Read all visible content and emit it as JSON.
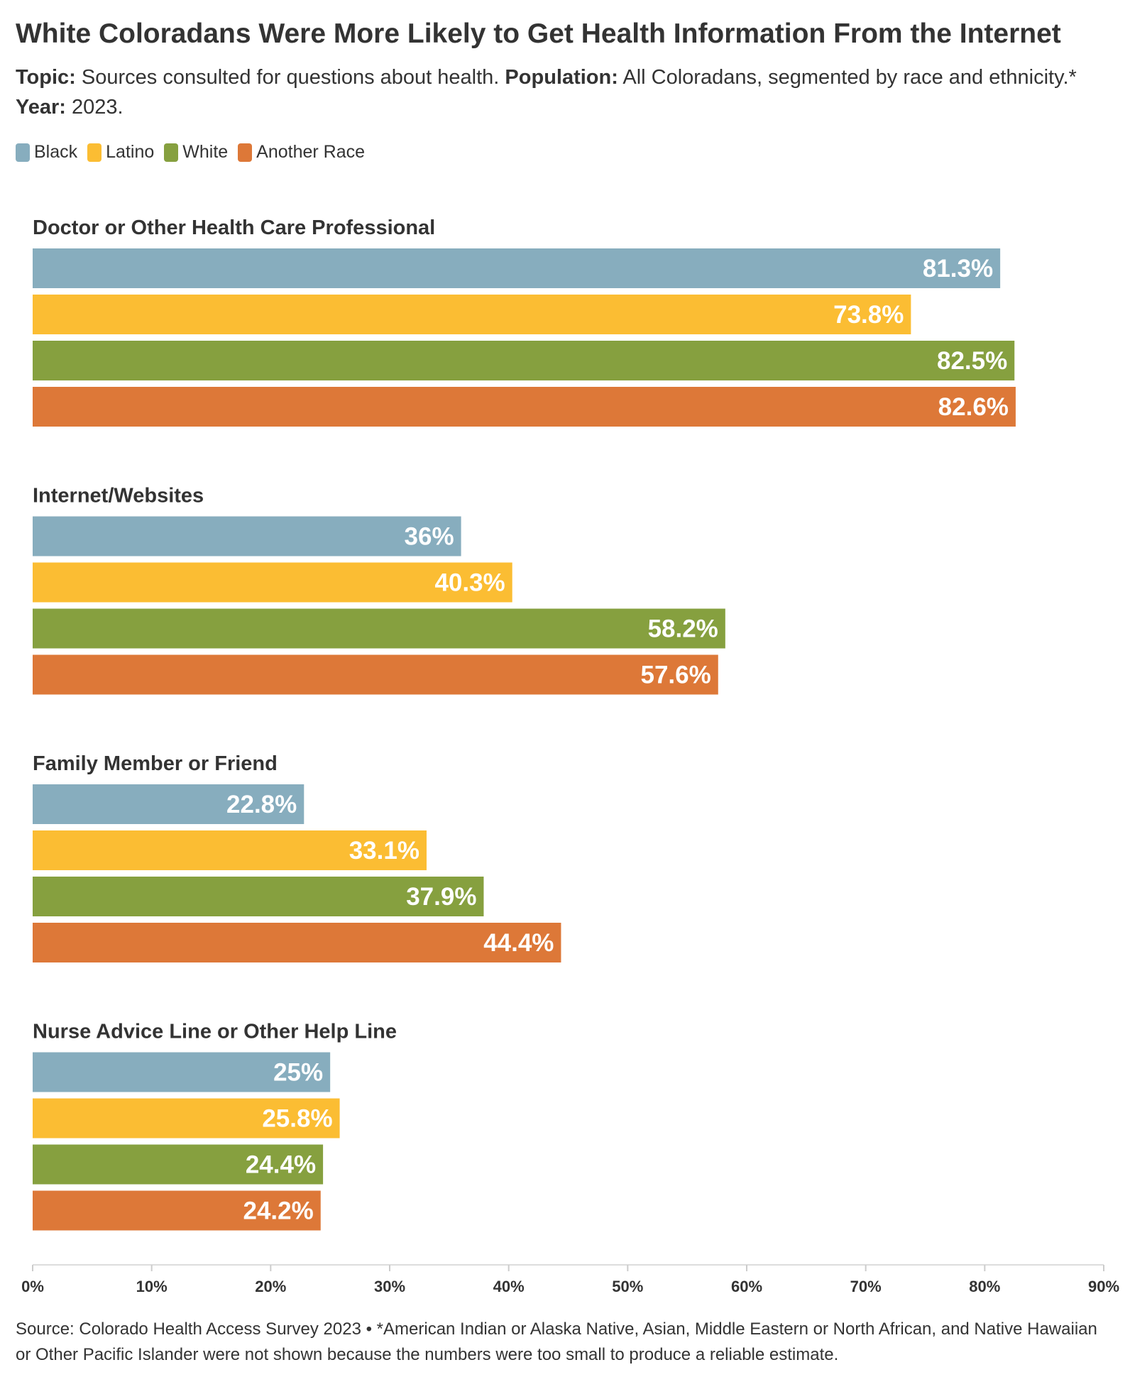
{
  "chart_data": {
    "type": "bar",
    "orientation": "horizontal",
    "title": "White Coloradans Were More Likely to Get Health Information From the Internet",
    "subtitle": {
      "topic_label": "Topic:",
      "topic_text": "Sources consulted for questions about health.",
      "population_label": "Population:",
      "population_text": "All Coloradans, segmented by race and ethnicity.*",
      "year_label": "Year:",
      "year_text": "2023."
    },
    "categories": [
      "Doctor or Other Health Care Professional",
      "Internet/Websites",
      "Family Member or Friend",
      "Nurse Advice Line or Other Help Line"
    ],
    "series": [
      {
        "name": "Black",
        "color": "#87adbe",
        "values": [
          81.3,
          36,
          22.8,
          25
        ],
        "labels": [
          "81.3%",
          "36%",
          "22.8%",
          "25%"
        ]
      },
      {
        "name": "Latino",
        "color": "#fbbd33",
        "values": [
          73.8,
          40.3,
          33.1,
          25.8
        ],
        "labels": [
          "73.8%",
          "40.3%",
          "33.1%",
          "25.8%"
        ]
      },
      {
        "name": "White",
        "color": "#86a03f",
        "values": [
          82.5,
          58.2,
          37.9,
          24.4
        ],
        "labels": [
          "82.5%",
          "58.2%",
          "37.9%",
          "24.4%"
        ]
      },
      {
        "name": "Another Race",
        "color": "#dd7838",
        "values": [
          82.6,
          57.6,
          44.4,
          24.2
        ],
        "labels": [
          "82.6%",
          "57.6%",
          "44.4%",
          "24.2%"
        ]
      }
    ],
    "xlim": [
      0,
      90
    ],
    "ticks": [
      0,
      10,
      20,
      30,
      40,
      50,
      60,
      70,
      80,
      90
    ],
    "tick_labels": [
      "0%",
      "10%",
      "20%",
      "30%",
      "40%",
      "50%",
      "60%",
      "70%",
      "80%",
      "90%"
    ],
    "grid": false,
    "legend_position": "top-left"
  },
  "source": "Source: Colorado Health Access Survey 2023 • *American Indian or Alaska Native, Asian, Middle Eastern or North African, and Native Hawaiian or Other Pacific Islander were not shown because the numbers were too small to produce a reliable estimate."
}
